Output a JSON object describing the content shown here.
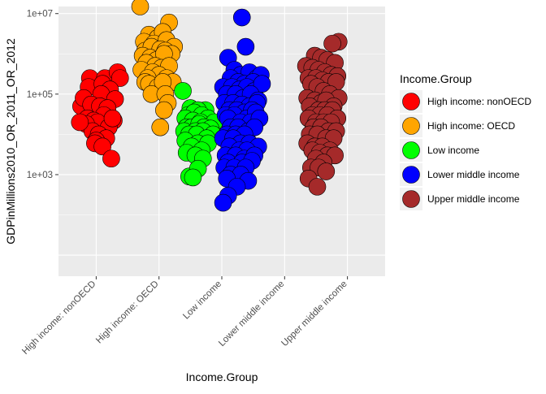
{
  "chart_data": {
    "type": "scatter",
    "subtype": "jitter",
    "title": "",
    "xlabel": "Income.Group",
    "ylabel": "GDPinMillions2010_OR_2011_OR_2012",
    "y_scale": "log10",
    "ylim": [
      3,
      15000000
    ],
    "y_ticks": [
      {
        "value": 1000,
        "label": "1e+03"
      },
      {
        "value": 100000,
        "label": "1e+05"
      },
      {
        "value": 10000000,
        "label": "1e+07"
      }
    ],
    "categories": [
      "High income: nonOECD",
      "High income: OECD",
      "Low income",
      "Lower middle income",
      "Upper middle income"
    ],
    "grid": true,
    "panel_background": "#EBEBEB",
    "legend": {
      "title": "Income.Group",
      "position": "right",
      "entries": [
        {
          "label": "High income: nonOECD",
          "color": "#FF0000"
        },
        {
          "label": "High income: OECD",
          "color": "#FFA500"
        },
        {
          "label": "Low income",
          "color": "#00FF00"
        },
        {
          "label": "Lower middle income",
          "color": "#0000FF"
        },
        {
          "label": "Upper middle income",
          "color": "#A52A2A"
        }
      ]
    },
    "series": [
      {
        "name": "High income: nonOECD",
        "color": "#FF0000",
        "x": [
          0.76,
          0.9,
          1.14,
          1.34,
          1.38,
          0.88,
          1.1,
          1.22,
          0.8,
          1.08,
          1.3,
          0.92,
          1.06,
          1.18,
          0.86,
          1.12,
          0.96,
          1.02,
          0.84,
          1.28,
          1.2,
          0.94,
          1.04,
          0.74,
          1.16,
          1.26,
          1.0,
          0.98,
          1.1,
          1.24
        ],
        "y": [
          50000,
          250000,
          250000,
          350000,
          250000,
          150000,
          180000,
          130000,
          80000,
          100000,
          75000,
          55000,
          50000,
          45000,
          25000,
          30000,
          22000,
          20000,
          18000,
          22000,
          15000,
          12000,
          10000,
          20000,
          8000,
          25000,
          7000,
          6000,
          5000,
          2500
        ]
      },
      {
        "name": "High income: OECD",
        "color": "#FFA500",
        "x": [
          1.7,
          2.16,
          1.84,
          1.98,
          2.06,
          1.76,
          1.92,
          2.12,
          2.24,
          1.78,
          1.88,
          2.02,
          2.1,
          2.2,
          1.74,
          1.86,
          1.96,
          2.08,
          1.8,
          1.94,
          2.04,
          2.16,
          1.72,
          1.9,
          2.0,
          2.12,
          1.82,
          2.22,
          1.78,
          1.84,
          1.98,
          2.06,
          1.88,
          2.1,
          2.14,
          2.08,
          2.02
        ],
        "y": [
          15000000,
          6000000,
          3000000,
          2500000,
          3500000,
          2000000,
          1800000,
          2200000,
          1500000,
          1200000,
          1500000,
          1300000,
          1200000,
          1000000,
          900000,
          800000,
          700000,
          1000000,
          600000,
          500000,
          450000,
          500000,
          400000,
          350000,
          300000,
          250000,
          250000,
          200000,
          200000,
          180000,
          150000,
          200000,
          100000,
          100000,
          60000,
          40000,
          15000
        ]
      },
      {
        "name": "Low income",
        "color": "#00FF00",
        "x": [
          2.38,
          2.74,
          2.5,
          2.62,
          2.84,
          2.46,
          2.56,
          2.68,
          2.78,
          2.42,
          2.54,
          2.66,
          2.88,
          2.44,
          2.52,
          2.64,
          2.72,
          2.82,
          2.4,
          2.58,
          2.7,
          2.86,
          2.48,
          2.6,
          2.76,
          2.42,
          2.62,
          2.78,
          2.52,
          2.68,
          2.44,
          2.58,
          2.7,
          2.48,
          2.62,
          2.54
        ],
        "y": [
          120000,
          40000,
          45000,
          40000,
          20000,
          30000,
          35000,
          30000,
          25000,
          25000,
          22000,
          20000,
          20000,
          15000,
          15000,
          18000,
          15000,
          14000,
          12000,
          12000,
          12000,
          10000,
          10000,
          10000,
          8000,
          7000,
          6000,
          6000,
          5000,
          4000,
          3500,
          3000,
          2500,
          900,
          1400,
          850
        ]
      },
      {
        "name": "Lower middle income",
        "color": "#0000FF",
        "x": [
          3.32,
          3.38,
          3.1,
          3.2,
          3.3,
          3.44,
          3.56,
          3.62,
          3.14,
          3.26,
          3.36,
          3.5,
          3.02,
          3.16,
          3.28,
          3.4,
          3.52,
          3.64,
          3.08,
          3.22,
          3.34,
          3.46,
          3.58,
          3.04,
          3.18,
          3.32,
          3.44,
          3.56,
          3.12,
          3.24,
          3.36,
          3.48,
          3.06,
          3.2,
          3.4,
          3.54,
          3.1,
          3.3,
          3.46,
          3.6,
          3.14,
          3.26,
          3.42,
          3.52,
          3.08,
          3.22,
          3.36,
          3.02,
          3.18,
          3.3,
          3.44,
          3.58,
          3.12,
          3.28,
          3.4,
          3.06,
          3.22,
          3.36,
          3.52,
          3.1,
          3.32,
          3.48,
          3.04,
          3.2,
          3.38,
          3.14,
          3.3,
          3.08,
          3.42,
          3.24,
          3.1,
          3.02
        ],
        "y": [
          8000000,
          1500000,
          800000,
          400000,
          300000,
          350000,
          250000,
          300000,
          250000,
          200000,
          180000,
          200000,
          150000,
          150000,
          130000,
          150000,
          120000,
          180000,
          100000,
          100000,
          80000,
          100000,
          70000,
          60000,
          60000,
          55000,
          50000,
          60000,
          40000,
          40000,
          35000,
          40000,
          30000,
          30000,
          25000,
          35000,
          25000,
          20000,
          20000,
          25000,
          15000,
          15000,
          12000,
          15000,
          10000,
          10000,
          10000,
          8000,
          8000,
          6000,
          6000,
          5000,
          5000,
          4000,
          4000,
          3000,
          3000,
          2500,
          3000,
          2000,
          2000,
          2200,
          1500,
          1500,
          1500,
          1000,
          1000,
          800,
          700,
          500,
          300,
          200
        ]
      },
      {
        "name": "Upper middle income",
        "color": "#A52A2A",
        "x": [
          4.86,
          4.76,
          4.48,
          4.58,
          4.68,
          4.8,
          4.34,
          4.44,
          4.54,
          4.64,
          4.74,
          4.84,
          4.38,
          4.5,
          4.6,
          4.7,
          4.82,
          4.42,
          4.52,
          4.62,
          4.72,
          4.86,
          4.36,
          4.48,
          4.58,
          4.66,
          4.78,
          4.4,
          4.54,
          4.64,
          4.76,
          4.44,
          4.56,
          4.68,
          4.84,
          4.38,
          4.5,
          4.62,
          4.74,
          4.46,
          4.58,
          4.7,
          4.82,
          4.4,
          4.52,
          4.66,
          4.78,
          4.36,
          4.48,
          4.6,
          4.72,
          4.44,
          4.56,
          4.68,
          4.8,
          4.5,
          4.62,
          4.42,
          4.54,
          4.66,
          4.38,
          4.52
        ],
        "y": [
          2000000,
          1800000,
          900000,
          800000,
          700000,
          600000,
          500000,
          450000,
          400000,
          350000,
          300000,
          280000,
          250000,
          250000,
          220000,
          200000,
          200000,
          180000,
          150000,
          120000,
          100000,
          80000,
          80000,
          70000,
          60000,
          70000,
          50000,
          50000,
          40000,
          40000,
          40000,
          30000,
          30000,
          30000,
          25000,
          25000,
          20000,
          20000,
          20000,
          15000,
          15000,
          12000,
          12000,
          10000,
          10000,
          8000,
          8000,
          6000,
          5000,
          5000,
          4000,
          4000,
          3500,
          3000,
          3000,
          2500,
          2000,
          1500,
          1500,
          1200,
          800,
          500
        ]
      }
    ]
  }
}
